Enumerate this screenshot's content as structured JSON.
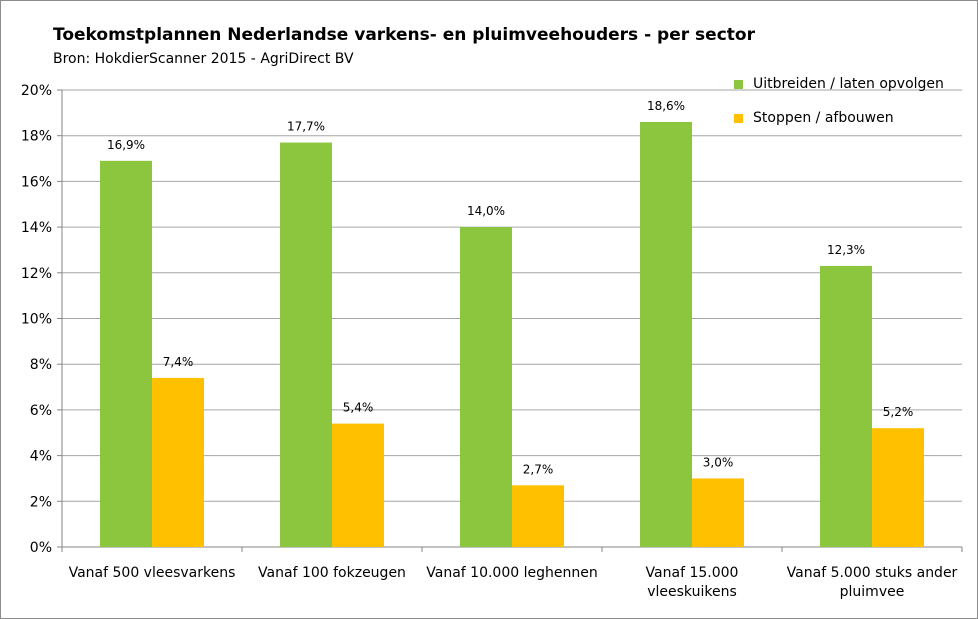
{
  "chart_data": {
    "type": "bar",
    "title": "Toekomstplannen Nederlandse varkens- en pluimveehouders - per sector",
    "subtitle": "Bron: HokdierScanner 2015 - AgriDirect BV",
    "xlabel": "",
    "ylabel": "",
    "ylim": [
      0,
      20
    ],
    "yticks": [
      "0%",
      "2%",
      "4%",
      "6%",
      "8%",
      "10%",
      "12%",
      "14%",
      "16%",
      "18%",
      "20%"
    ],
    "grid": true,
    "legend_position": "top-right",
    "categories": [
      [
        "Vanaf 500 vleesvarkens"
      ],
      [
        "Vanaf 100 fokzeugen"
      ],
      [
        "Vanaf 10.000 leghennen"
      ],
      [
        "Vanaf 15.000",
        "vleeskuikens"
      ],
      [
        "Vanaf 5.000 stuks ander",
        "pluimvee"
      ]
    ],
    "series": [
      {
        "name": "Uitbreiden / laten opvolgen",
        "color": "#8cc63f",
        "values": [
          16.9,
          17.7,
          14.0,
          18.6,
          12.3
        ],
        "labels": [
          "16,9%",
          "17,7%",
          "14,0%",
          "18,6%",
          "12,3%"
        ]
      },
      {
        "name": "Stoppen / afbouwen",
        "color": "#ffc000",
        "values": [
          7.4,
          5.4,
          2.7,
          3.0,
          5.2
        ],
        "labels": [
          "7,4%",
          "5,4%",
          "2,7%",
          "3,0%",
          "5,2%"
        ]
      }
    ]
  }
}
